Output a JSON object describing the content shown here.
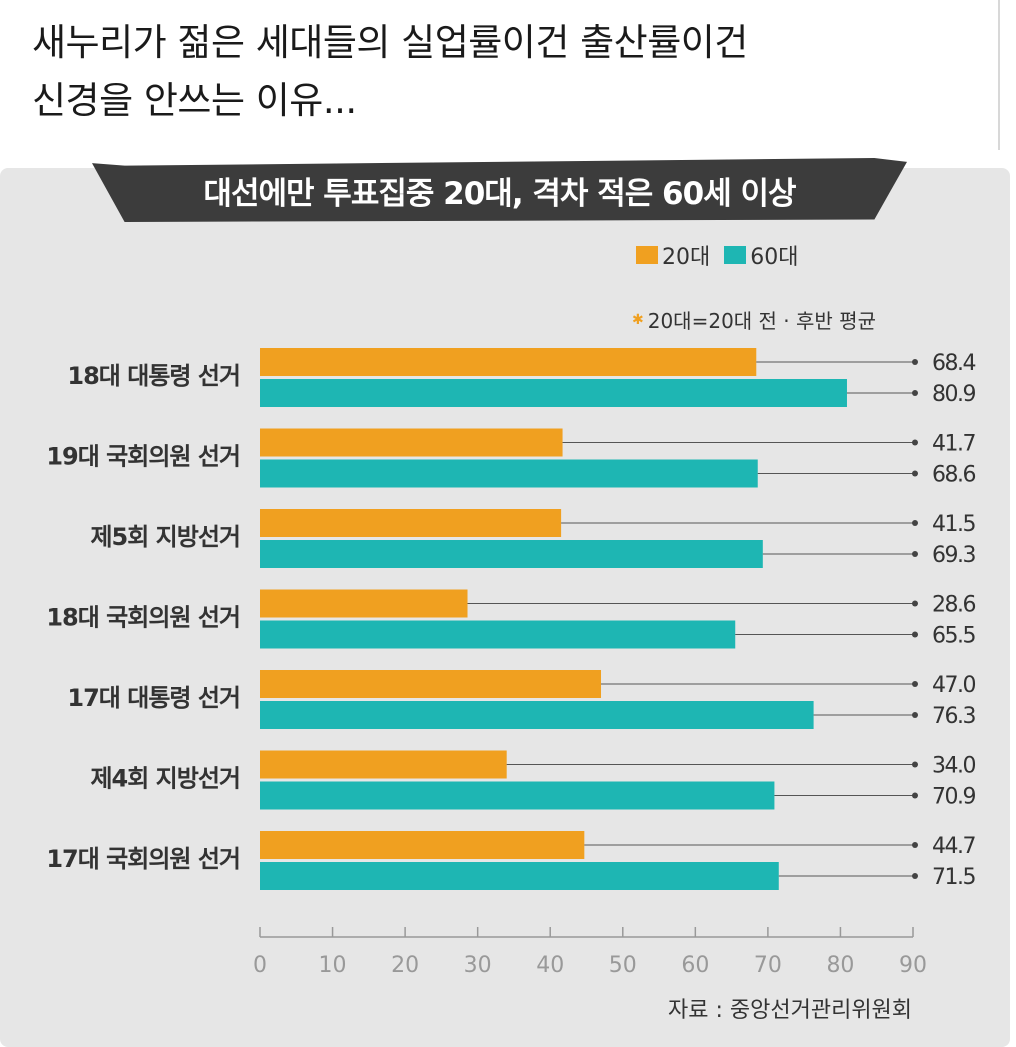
{
  "post": {
    "title_line1": "새누리가 젊은 세대들의 실업률이건 출산률이건",
    "title_line2": "신경을 안쓰는 이유..."
  },
  "chart_data": {
    "type": "bar",
    "orientation": "horizontal",
    "title": "대선에만 투표집중 20대, 격차 적은 60세 이상",
    "categories": [
      "18대 대통령 선거",
      "19대 국회의원 선거",
      "제5회 지방선거",
      "18대 국회의원 선거",
      "17대 대통령 선거",
      "제4회 지방선거",
      "17대 국회의원 선거"
    ],
    "series": [
      {
        "name": "20대",
        "color": "#f0a020",
        "values": [
          68.4,
          41.7,
          41.5,
          28.6,
          47.0,
          34.0,
          44.7
        ],
        "labels": [
          "68.4",
          "41.7",
          "41.5",
          "28.6",
          "47.0",
          "34.0",
          "44.7"
        ]
      },
      {
        "name": "60대",
        "color": "#1eb6b3",
        "values": [
          80.9,
          68.6,
          69.3,
          65.5,
          76.3,
          70.9,
          71.5
        ],
        "labels": [
          "80.9",
          "68.6",
          "69.3",
          "65.5",
          "76.3",
          "70.9",
          "71.5"
        ]
      }
    ],
    "xlim": [
      0,
      90
    ],
    "xticks": [
      0,
      10,
      20,
      30,
      40,
      50,
      60,
      70,
      80,
      90
    ],
    "legend_position": "top-right",
    "note": "20대=20대 전 · 후반 평균",
    "source": "자료 : 중앙선거관리위원회"
  }
}
